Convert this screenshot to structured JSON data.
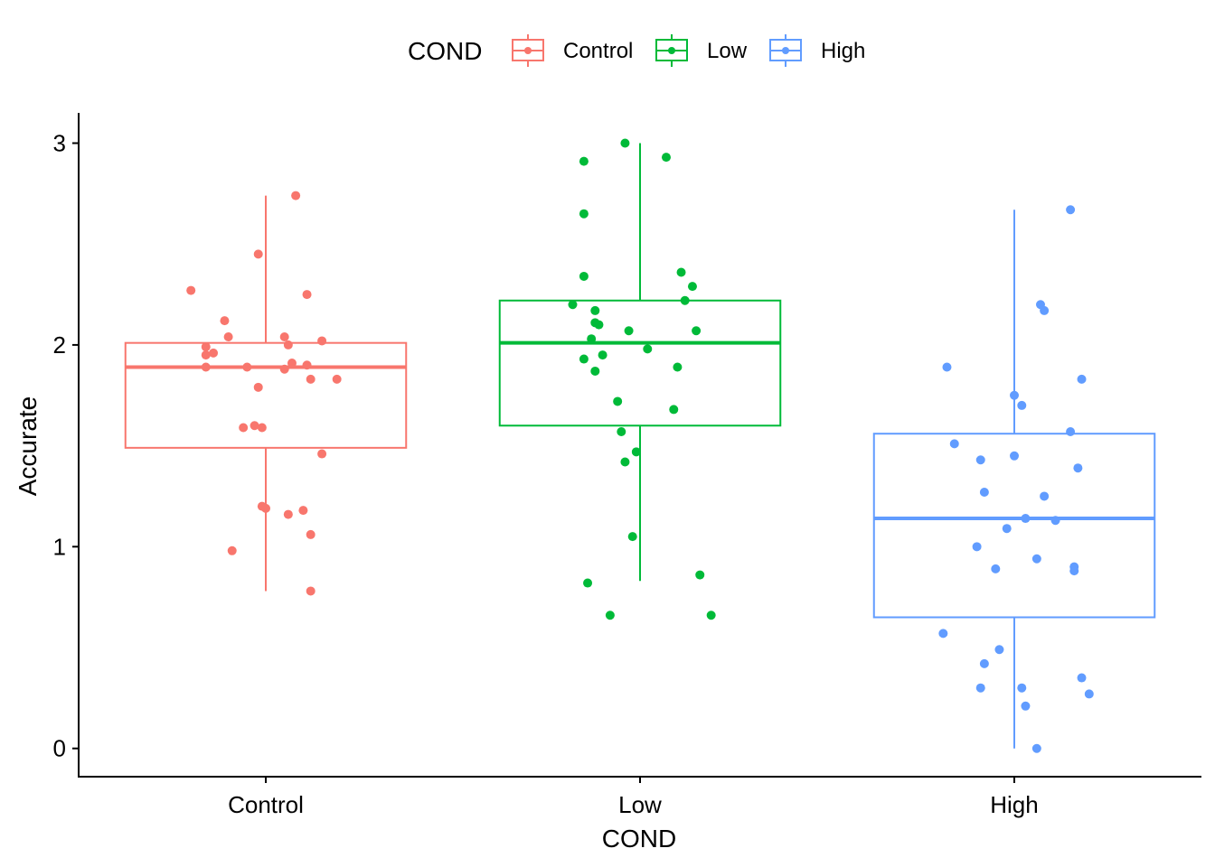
{
  "chart_data": {
    "type": "boxplot",
    "xlabel": "COND",
    "ylabel": "Accurate",
    "ylim": [
      -0.14,
      3.15
    ],
    "y_ticks": [
      0,
      1,
      2,
      3
    ],
    "y_tick_labels": [
      "0",
      "1",
      "2",
      "3"
    ],
    "categories": [
      "Control",
      "Low",
      "High"
    ],
    "grid": false,
    "legend": {
      "title": "COND",
      "position": "top",
      "entries": [
        "Control",
        "Low",
        "High"
      ]
    },
    "colors": {
      "Control": "#F8766D",
      "Low": "#00BA38",
      "High": "#619CFF"
    },
    "boxes": [
      {
        "name": "Control",
        "whisker_low": 0.78,
        "q1": 1.49,
        "median": 1.89,
        "q3": 2.01,
        "whisker_high": 2.74
      },
      {
        "name": "Low",
        "whisker_low": 0.83,
        "q1": 1.6,
        "median": 2.01,
        "q3": 2.22,
        "whisker_high": 3.0
      },
      {
        "name": "High",
        "whisker_low": 0.0,
        "q1": 0.65,
        "median": 1.14,
        "q3": 1.56,
        "whisker_high": 2.67
      }
    ],
    "points": [
      {
        "series": "Control",
        "x": [
          -0.2,
          0.08,
          -0.02,
          -0.11,
          0.11,
          -0.16,
          -0.1,
          0.05,
          0.15,
          0.06,
          -0.16,
          -0.14,
          0.11,
          0.07,
          -0.16,
          0.05,
          -0.05,
          -0.02,
          0.12,
          0.19,
          -0.03,
          -0.06,
          -0.01,
          0.15,
          -0.01,
          0.0,
          0.06,
          0.1,
          -0.09,
          0.12,
          0.12
        ],
        "y": [
          2.27,
          2.74,
          2.45,
          2.12,
          2.25,
          1.99,
          2.04,
          2.04,
          2.02,
          2.0,
          1.95,
          1.96,
          1.9,
          1.91,
          1.89,
          1.88,
          1.89,
          1.79,
          1.83,
          1.83,
          1.6,
          1.59,
          1.59,
          1.46,
          1.2,
          1.19,
          1.16,
          1.18,
          0.98,
          1.06,
          0.78
        ]
      },
      {
        "series": "Low",
        "x": [
          -0.04,
          0.07,
          -0.15,
          -0.15,
          -0.15,
          0.11,
          0.14,
          0.12,
          -0.18,
          -0.12,
          -0.12,
          0.15,
          -0.11,
          -0.03,
          -0.13,
          -0.1,
          0.02,
          -0.15,
          0.1,
          -0.12,
          -0.06,
          0.09,
          -0.05,
          -0.04,
          -0.01,
          -0.02,
          -0.14,
          0.16,
          -0.08,
          0.19
        ],
        "y": [
          3.0,
          2.93,
          2.91,
          2.65,
          2.34,
          2.36,
          2.29,
          2.22,
          2.2,
          2.17,
          2.11,
          2.07,
          2.1,
          2.07,
          2.03,
          1.95,
          1.98,
          1.93,
          1.89,
          1.87,
          1.72,
          1.68,
          1.57,
          1.42,
          1.47,
          1.05,
          0.82,
          0.86,
          0.66,
          0.66
        ]
      },
      {
        "series": "High",
        "x": [
          0.15,
          0.07,
          0.08,
          -0.18,
          0.18,
          0.0,
          0.02,
          0.15,
          -0.16,
          0.0,
          0.17,
          -0.09,
          -0.08,
          0.08,
          0.03,
          0.11,
          -0.02,
          -0.1,
          -0.05,
          0.06,
          0.16,
          0.16,
          -0.04,
          -0.19,
          -0.08,
          -0.09,
          0.02,
          0.18,
          0.03,
          0.2,
          0.06
        ],
        "y": [
          2.67,
          2.2,
          2.17,
          1.89,
          1.83,
          1.75,
          1.7,
          1.57,
          1.51,
          1.45,
          1.39,
          1.43,
          1.27,
          1.25,
          1.14,
          1.13,
          1.09,
          1.0,
          0.89,
          0.94,
          0.9,
          0.88,
          0.49,
          0.57,
          0.42,
          0.3,
          0.3,
          0.35,
          0.21,
          0.27,
          0.0
        ]
      }
    ]
  }
}
